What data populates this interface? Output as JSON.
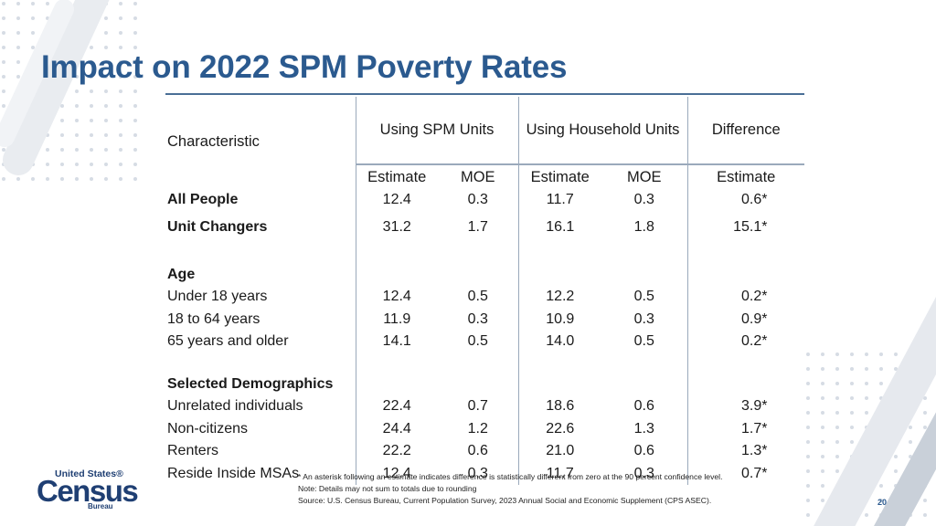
{
  "slide": {
    "title": "Impact on 2022 SPM Poverty Rates",
    "page_number": "20",
    "accent_color": "#2b5a8f"
  },
  "table": {
    "characteristic_header": "Characteristic",
    "group_headers": {
      "spm": "Using SPM Units",
      "household": "Using Household Units",
      "difference": "Difference"
    },
    "sub_headers": {
      "spm_estimate": "Estimate",
      "spm_moe": "MOE",
      "hh_estimate": "Estimate",
      "hh_moe": "MOE",
      "diff_estimate": "Estimate"
    },
    "rows": {
      "all_people": {
        "label": "All People",
        "spm_est": "12.4",
        "spm_moe": "0.3",
        "hh_est": "11.7",
        "hh_moe": "0.3",
        "diff": "0.6",
        "mark": "*"
      },
      "unit_changers": {
        "label": "Unit Changers",
        "spm_est": "31.2",
        "spm_moe": "1.7",
        "hh_est": "16.1",
        "hh_moe": "1.8",
        "diff": "15.1",
        "mark": "*"
      },
      "age_heading": {
        "label": "Age"
      },
      "under_18": {
        "label": "Under 18 years",
        "spm_est": "12.4",
        "spm_moe": "0.5",
        "hh_est": "12.2",
        "hh_moe": "0.5",
        "diff": "0.2",
        "mark": "*"
      },
      "age_18_64": {
        "label": "18 to 64 years",
        "spm_est": "11.9",
        "spm_moe": "0.3",
        "hh_est": "10.9",
        "hh_moe": "0.3",
        "diff": "0.9",
        "mark": "*"
      },
      "age_65_plus": {
        "label": "65 years and older",
        "spm_est": "14.1",
        "spm_moe": "0.5",
        "hh_est": "14.0",
        "hh_moe": "0.5",
        "diff": "0.2",
        "mark": "*"
      },
      "demographics_heading": {
        "label": "Selected Demographics"
      },
      "unrelated": {
        "label": "Unrelated individuals",
        "spm_est": "22.4",
        "spm_moe": "0.7",
        "hh_est": "18.6",
        "hh_moe": "0.6",
        "diff": "3.9",
        "mark": "*"
      },
      "non_citizens": {
        "label": "Non-citizens",
        "spm_est": "24.4",
        "spm_moe": "1.2",
        "hh_est": "22.6",
        "hh_moe": "1.3",
        "diff": "1.7",
        "mark": "*"
      },
      "renters": {
        "label": "Renters",
        "spm_est": "22.2",
        "spm_moe": "0.6",
        "hh_est": "21.0",
        "hh_moe": "0.6",
        "diff": "1.3",
        "mark": "*"
      },
      "msas": {
        "label": "Reside Inside MSAs",
        "spm_est": "12.4",
        "spm_moe": "0.3",
        "hh_est": "11.7",
        "hh_moe": "0.3",
        "diff": "0.7",
        "mark": "*"
      }
    }
  },
  "notes": {
    "asterisk": "* An asterisk following an estimate indicates difference is statistically different from zero at the 90 percent confidence level.",
    "rounding": "Note: Details may not sum to totals due to rounding",
    "source": "Source: U.S. Census Bureau, Current Population Survey, 2023 Annual Social and Economic Supplement (CPS ASEC)."
  },
  "logo": {
    "line1": "United States®",
    "line2": "Census",
    "line3": "Bureau"
  }
}
